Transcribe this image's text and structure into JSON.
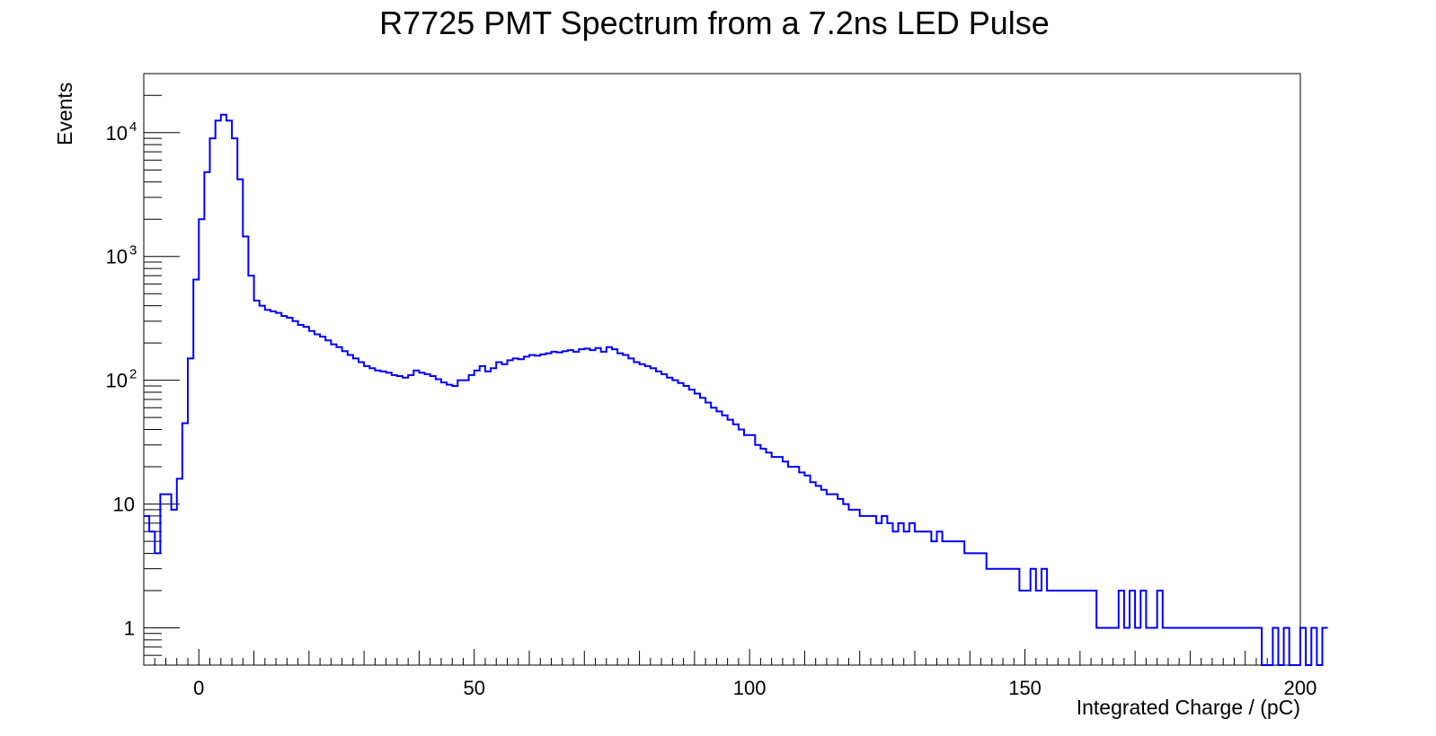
{
  "chart_data": {
    "type": "histogram",
    "title": "R7725 PMT Spectrum from a 7.2ns LED Pulse",
    "xlabel": "Integrated Charge / (pC)",
    "ylabel": "Events",
    "xlim": [
      -10,
      200
    ],
    "ylim": [
      0.5,
      30000
    ],
    "yscale": "log",
    "grid": false,
    "line_color": "#0000ff",
    "x_ticks": [
      "0",
      "50",
      "100",
      "150",
      "200"
    ],
    "x_tick_values": [
      0,
      50,
      100,
      150,
      200
    ],
    "y_ticks": [
      {
        "value": 1,
        "base": "1",
        "exp": ""
      },
      {
        "value": 10,
        "base": "10",
        "exp": ""
      },
      {
        "value": 100,
        "base": "10",
        "exp": "2"
      },
      {
        "value": 1000,
        "base": "10",
        "exp": "3"
      },
      {
        "value": 10000,
        "base": "10",
        "exp": "4"
      }
    ],
    "bin_start": -10,
    "bin_width": 1,
    "values": [
      8,
      6,
      4,
      12,
      12,
      9,
      16,
      45,
      150,
      650,
      2000,
      4800,
      9000,
      12500,
      14000,
      12500,
      9000,
      4200,
      1450,
      700,
      440,
      400,
      370,
      360,
      350,
      330,
      320,
      300,
      280,
      270,
      250,
      235,
      225,
      210,
      195,
      185,
      172,
      160,
      150,
      140,
      130,
      125,
      120,
      118,
      115,
      110,
      108,
      105,
      110,
      120,
      115,
      112,
      108,
      102,
      96,
      92,
      90,
      100,
      100,
      110,
      120,
      130,
      118,
      125,
      140,
      135,
      145,
      150,
      148,
      155,
      160,
      158,
      162,
      165,
      170,
      168,
      172,
      175,
      170,
      178,
      180,
      175,
      182,
      170,
      185,
      178,
      165,
      160,
      150,
      140,
      135,
      130,
      125,
      118,
      112,
      105,
      100,
      95,
      90,
      84,
      78,
      72,
      66,
      60,
      56,
      52,
      48,
      44,
      40,
      36,
      36,
      30,
      28,
      26,
      24,
      24,
      22,
      20,
      20,
      18,
      17,
      15,
      14,
      13,
      12,
      12,
      11,
      10,
      9,
      9,
      8,
      8,
      8,
      7,
      8,
      7,
      6,
      7,
      6,
      7,
      6,
      6,
      6,
      5,
      6,
      5,
      5,
      5,
      5,
      4,
      4,
      4,
      4,
      3,
      3,
      3,
      3,
      3,
      3,
      2,
      2,
      3,
      2,
      3,
      2,
      2,
      2,
      2,
      2,
      2,
      2,
      2,
      2,
      1,
      1,
      1,
      1,
      2,
      1,
      2,
      1,
      2,
      1,
      1,
      2,
      1,
      1,
      1,
      1,
      1,
      1,
      1,
      1,
      1,
      1,
      1,
      1,
      1,
      1,
      1,
      1,
      1,
      1,
      0,
      0,
      1,
      0,
      1,
      0,
      0,
      1,
      0,
      1,
      0,
      1
    ]
  }
}
